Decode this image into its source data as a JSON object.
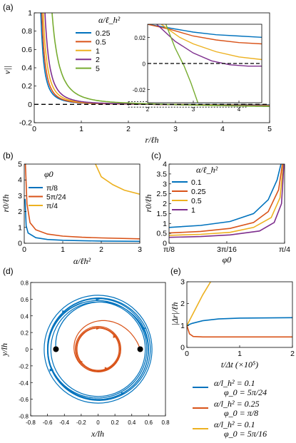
{
  "colors": {
    "blue": "#0072BD",
    "orange": "#D95319",
    "yellow": "#EDB120",
    "purple": "#7E2F8E",
    "green": "#77AC30"
  },
  "chart_data": [
    {
      "panel": "(a)",
      "type": "line",
      "xlabel": "r/ℓ_h",
      "ylabel": "v_||",
      "xlim": [
        0,
        5
      ],
      "ylim": [
        -0.2,
        1
      ],
      "xticks": [
        "0",
        "1",
        "2",
        "3",
        "4",
        "5"
      ],
      "yticks": [
        "-0.2",
        "0",
        "0.2",
        "0.4",
        "0.6",
        "0.8",
        "1"
      ],
      "legend_title": "α/ℓ_h²",
      "series": [
        {
          "name": "0.25",
          "color": "blue",
          "A": 0.016,
          "k": 2.1
        },
        {
          "name": "0.5",
          "color": "orange",
          "A": 0.018,
          "k": 2.2
        },
        {
          "name": "1",
          "color": "yellow",
          "A": 0.024,
          "k": 2.25
        },
        {
          "name": "2",
          "color": "purple",
          "A": 0.031,
          "k": 2.35
        },
        {
          "name": "5",
          "color": "green",
          "A": 0.088,
          "k": 2.5
        }
      ],
      "zero_line": 0,
      "inset": {
        "xlim": [
          2,
          4.5
        ],
        "ylim": [
          -0.03,
          0.03
        ],
        "xticks": [
          "2",
          "3",
          "4"
        ],
        "yticks": [
          "0.02",
          "0",
          "-0.02"
        ]
      }
    },
    {
      "panel": "(b)",
      "type": "line",
      "xlabel": "α/ℓ_h²",
      "ylabel": "r_0/ℓ_h",
      "xlim": [
        0,
        3
      ],
      "ylim": [
        0,
        5
      ],
      "xticks": [
        "0",
        "1",
        "2",
        "3"
      ],
      "yticks": [
        "0",
        "1",
        "2",
        "3",
        "4",
        "5"
      ],
      "legend_title": "φ_0",
      "series": [
        {
          "name": "π/8",
          "color": "blue",
          "points": [
            [
              0.02,
              2.8
            ],
            [
              0.05,
              1.1
            ],
            [
              0.1,
              0.65
            ],
            [
              0.3,
              0.35
            ],
            [
              0.6,
              0.24
            ],
            [
              1.0,
              0.19
            ],
            [
              1.5,
              0.16
            ],
            [
              2.0,
              0.14
            ],
            [
              3.0,
              0.12
            ]
          ]
        },
        {
          "name": "5π/24",
          "color": "orange",
          "points": [
            [
              0.03,
              5.0
            ],
            [
              0.07,
              2.5
            ],
            [
              0.15,
              1.3
            ],
            [
              0.3,
              0.85
            ],
            [
              0.6,
              0.58
            ],
            [
              1.0,
              0.45
            ],
            [
              1.5,
              0.38
            ],
            [
              2.0,
              0.34
            ],
            [
              3.0,
              0.28
            ]
          ]
        },
        {
          "name": "π/4",
          "color": "yellow",
          "points": [
            [
              1.85,
              5.0
            ],
            [
              2.0,
              4.2
            ],
            [
              2.3,
              3.7
            ],
            [
              2.6,
              3.35
            ],
            [
              3.0,
              3.1
            ]
          ]
        }
      ]
    },
    {
      "panel": "(c)",
      "type": "line",
      "xlabel": "φ_0",
      "ylabel": "r_0/ℓ_h",
      "xlim": [
        0.3927,
        0.7854
      ],
      "ylim": [
        0,
        4
      ],
      "xticks": [
        "π/8",
        "3π/16",
        "π/4"
      ],
      "yticks": [
        "0",
        "0.5",
        "1",
        "1.5",
        "2",
        "2.5",
        "3",
        "3.5",
        "4"
      ],
      "legend_title": "α/ℓ_h²",
      "series": [
        {
          "name": "0.1",
          "color": "blue",
          "points": [
            [
              0.3927,
              0.8
            ],
            [
              0.5,
              0.9
            ],
            [
              0.6,
              1.1
            ],
            [
              0.68,
              1.5
            ],
            [
              0.73,
              2.2
            ],
            [
              0.76,
              3.2
            ],
            [
              0.773,
              4.0
            ]
          ]
        },
        {
          "name": "0.25",
          "color": "orange",
          "points": [
            [
              0.3927,
              0.52
            ],
            [
              0.5,
              0.6
            ],
            [
              0.6,
              0.75
            ],
            [
              0.68,
              1.05
            ],
            [
              0.73,
              1.6
            ],
            [
              0.765,
              2.7
            ],
            [
              0.778,
              4.0
            ]
          ]
        },
        {
          "name": "0.5",
          "color": "yellow",
          "points": [
            [
              0.3927,
              0.4
            ],
            [
              0.5,
              0.45
            ],
            [
              0.6,
              0.55
            ],
            [
              0.68,
              0.8
            ],
            [
              0.74,
              1.3
            ],
            [
              0.77,
              2.3
            ],
            [
              0.781,
              4.0
            ]
          ]
        },
        {
          "name": "1",
          "color": "purple",
          "points": [
            [
              0.3927,
              0.3
            ],
            [
              0.5,
              0.34
            ],
            [
              0.6,
              0.42
            ],
            [
              0.7,
              0.62
            ],
            [
              0.75,
              1.05
            ],
            [
              0.775,
              2.0
            ],
            [
              0.783,
              4.0
            ]
          ]
        }
      ]
    },
    {
      "panel": "(d)",
      "type": "scatter",
      "xlabel": "x/l_h",
      "ylabel": "y/l_h",
      "xlim": [
        -0.8,
        0.8
      ],
      "ylim": [
        -0.8,
        0.8
      ],
      "xticks": [
        "-0.8",
        "-0.6",
        "-0.4",
        "-0.2",
        "0",
        "0.2",
        "0.4",
        "0.6",
        "0.8"
      ],
      "yticks": [
        "-0.8",
        "-0.6",
        "-0.4",
        "-0.2",
        "0",
        "0.2",
        "0.4",
        "0.6",
        "0.8"
      ],
      "start_points": [
        [
          -0.5,
          0
        ],
        [
          0.5,
          0
        ]
      ],
      "blue_orbit_radius": 0.6,
      "orange_orbit_radius": 0.26
    },
    {
      "panel": "(e)",
      "type": "line",
      "xlabel": "t/Δt (×10⁵)",
      "ylabel": "|Δr|/ℓ_h",
      "xlim": [
        0,
        2
      ],
      "ylim": [
        0,
        3
      ],
      "xticks": [
        "0",
        "1",
        "2"
      ],
      "yticks": [
        "0",
        "1",
        "2",
        "3"
      ],
      "series": [
        {
          "name": "α/l_h² = 0.1",
          "name2": "φ_0 = 5π/24",
          "color": "blue",
          "points": [
            [
              0,
              1.0
            ],
            [
              0.1,
              1.1
            ],
            [
              0.3,
              1.22
            ],
            [
              0.6,
              1.3
            ],
            [
              1.0,
              1.34
            ],
            [
              2.0,
              1.36
            ]
          ]
        },
        {
          "name": "α/l_h² = 0.25",
          "name2": "φ_0 = π/8",
          "color": "orange",
          "points": [
            [
              0,
              1.0
            ],
            [
              0.05,
              0.62
            ],
            [
              0.12,
              0.5
            ],
            [
              0.3,
              0.48
            ],
            [
              2.0,
              0.48
            ]
          ]
        },
        {
          "name": "α/l_h² = 0.1",
          "name2": "φ_0 = 5π/16",
          "color": "yellow",
          "points": [
            [
              0,
              1.0
            ],
            [
              0.15,
              1.7
            ],
            [
              0.3,
              2.4
            ],
            [
              0.45,
              3.0
            ]
          ]
        }
      ]
    }
  ]
}
